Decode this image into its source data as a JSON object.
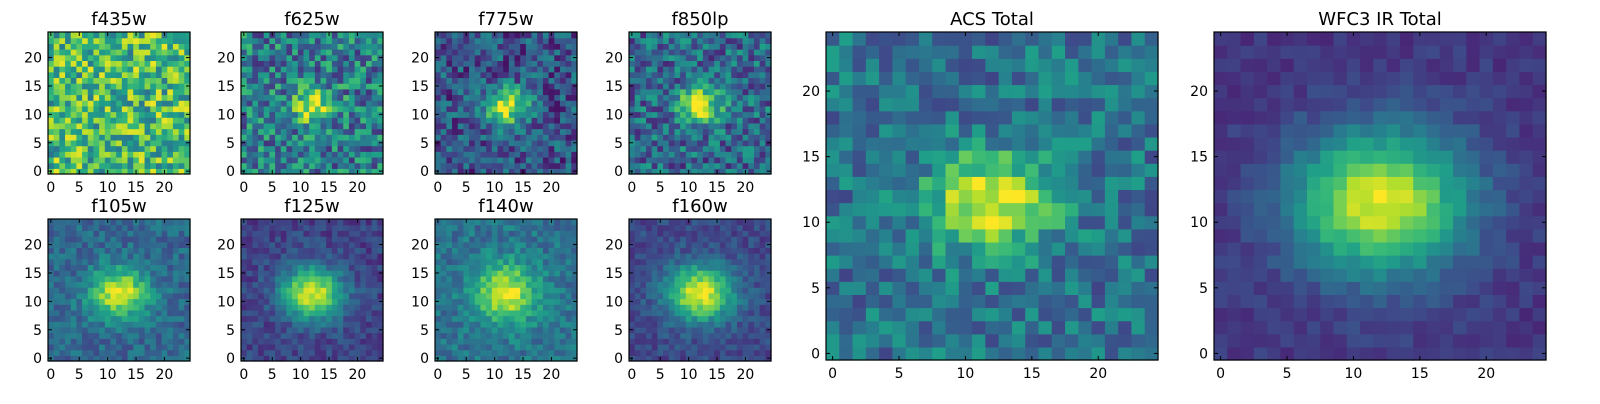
{
  "chart_data": [
    {
      "type": "heatmap",
      "title": "f435w",
      "xlim": [
        0,
        25
      ],
      "ylim": [
        0,
        25
      ],
      "xticks": [
        0,
        5,
        10,
        15,
        20
      ],
      "yticks": [
        0,
        5,
        10,
        15,
        20
      ],
      "colormap": "viridis",
      "description_center": [
        12,
        11.5
      ],
      "signal": 0.0,
      "sigma": [
        3,
        3
      ],
      "noise": 0.3,
      "base": 0.68
    },
    {
      "type": "heatmap",
      "title": "f625w",
      "xlim": [
        0,
        25
      ],
      "ylim": [
        0,
        25
      ],
      "xticks": [
        0,
        5,
        10,
        15,
        20
      ],
      "yticks": [
        0,
        5,
        10,
        15,
        20
      ],
      "colormap": "viridis",
      "description_center": [
        12,
        11.5
      ],
      "signal": 0.6,
      "sigma": [
        2.4,
        2.0
      ],
      "noise": 0.28,
      "base": 0.42
    },
    {
      "type": "heatmap",
      "title": "f775w",
      "xlim": [
        0,
        25
      ],
      "ylim": [
        0,
        25
      ],
      "xticks": [
        0,
        5,
        10,
        15,
        20
      ],
      "yticks": [
        0,
        5,
        10,
        15,
        20
      ],
      "colormap": "viridis",
      "description_center": [
        12,
        11.5
      ],
      "signal": 0.72,
      "sigma": [
        2.8,
        2.2
      ],
      "noise": 0.22,
      "base": 0.26
    },
    {
      "type": "heatmap",
      "title": "f850lp",
      "xlim": [
        0,
        25
      ],
      "ylim": [
        0,
        25
      ],
      "xticks": [
        0,
        5,
        10,
        15,
        20
      ],
      "yticks": [
        0,
        5,
        10,
        15,
        20
      ],
      "colormap": "viridis",
      "description_center": [
        12,
        11.5
      ],
      "signal": 0.66,
      "sigma": [
        2.6,
        2.2
      ],
      "noise": 0.24,
      "base": 0.34
    },
    {
      "type": "heatmap",
      "title": "f105w",
      "xlim": [
        0,
        25
      ],
      "ylim": [
        0,
        25
      ],
      "xticks": [
        0,
        5,
        10,
        15,
        20
      ],
      "yticks": [
        0,
        5,
        10,
        15,
        20
      ],
      "colormap": "viridis",
      "description_center": [
        12,
        11.5
      ],
      "signal": 0.62,
      "sigma": [
        3.6,
        3.0
      ],
      "noise": 0.12,
      "base": 0.34
    },
    {
      "type": "heatmap",
      "title": "f125w",
      "xlim": [
        0,
        25
      ],
      "ylim": [
        0,
        25
      ],
      "xticks": [
        0,
        5,
        10,
        15,
        20
      ],
      "yticks": [
        0,
        5,
        10,
        15,
        20
      ],
      "colormap": "viridis",
      "description_center": [
        12,
        11.5
      ],
      "signal": 0.75,
      "sigma": [
        3.8,
        3.2
      ],
      "noise": 0.1,
      "base": 0.2
    },
    {
      "type": "heatmap",
      "title": "f140w",
      "xlim": [
        0,
        25
      ],
      "ylim": [
        0,
        25
      ],
      "xticks": [
        0,
        5,
        10,
        15,
        20
      ],
      "yticks": [
        0,
        5,
        10,
        15,
        20
      ],
      "colormap": "viridis",
      "description_center": [
        12,
        11.5
      ],
      "signal": 0.58,
      "sigma": [
        3.8,
        3.6
      ],
      "noise": 0.12,
      "base": 0.38
    },
    {
      "type": "heatmap",
      "title": "f160w",
      "xlim": [
        0,
        25
      ],
      "ylim": [
        0,
        25
      ],
      "xticks": [
        0,
        5,
        10,
        15,
        20
      ],
      "yticks": [
        0,
        5,
        10,
        15,
        20
      ],
      "colormap": "viridis",
      "description_center": [
        12,
        11.5
      ],
      "signal": 0.75,
      "sigma": [
        4.2,
        3.4
      ],
      "noise": 0.09,
      "base": 0.22
    },
    {
      "type": "heatmap",
      "title": "ACS Total",
      "xlim": [
        0,
        25
      ],
      "ylim": [
        0,
        25
      ],
      "xticks": [
        0,
        5,
        10,
        15,
        20
      ],
      "yticks": [
        0,
        5,
        10,
        15,
        20
      ],
      "colormap": "viridis",
      "description_center": [
        12,
        11.5
      ],
      "signal": 0.62,
      "sigma": [
        3.2,
        2.6
      ],
      "noise": 0.18,
      "base": 0.38
    },
    {
      "type": "heatmap",
      "title": "WFC3 IR Total",
      "xlim": [
        0,
        25
      ],
      "ylim": [
        0,
        25
      ],
      "xticks": [
        0,
        5,
        10,
        15,
        20
      ],
      "yticks": [
        0,
        5,
        10,
        15,
        20
      ],
      "colormap": "viridis",
      "description_center": [
        12,
        11.5
      ],
      "signal": 0.8,
      "sigma": [
        4.6,
        3.8
      ],
      "noise": 0.06,
      "base": 0.16
    }
  ],
  "colors": {
    "background": "#ffffff",
    "axis": "#000000"
  }
}
